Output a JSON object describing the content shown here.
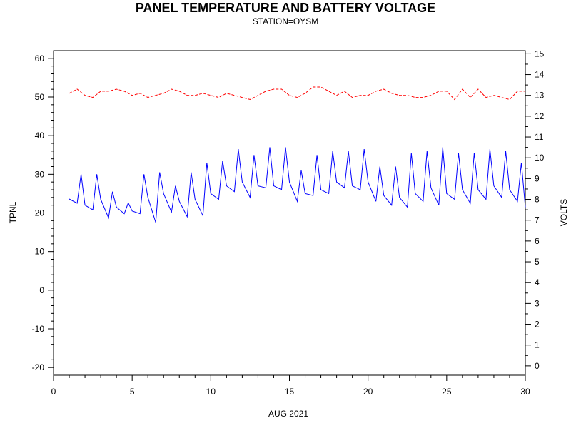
{
  "chart_data": {
    "type": "line",
    "title": "PANEL TEMPERATURE AND BATTERY VOLTAGE",
    "subtitle": "STATION=OYSM",
    "xlabel": "AUG 2021",
    "ylabel_left": "TPNL",
    "ylabel_right": "VOLTS",
    "xlim": [
      0,
      30
    ],
    "ylim_left": [
      -22,
      62
    ],
    "ylim_right": [
      -0.45,
      15.15
    ],
    "x_ticks": [
      0,
      5,
      10,
      15,
      20,
      25,
      30
    ],
    "y_ticks_left": [
      -20,
      -10,
      0,
      10,
      20,
      30,
      40,
      50,
      60
    ],
    "y_ticks_right": [
      0,
      1,
      2,
      3,
      4,
      5,
      6,
      7,
      8,
      9,
      10,
      11,
      12,
      13,
      14,
      15
    ],
    "grid": false,
    "colors": {
      "TPNL": "#0000ff",
      "VOLTS": "#ff0000",
      "axes": "#000000"
    },
    "series": [
      {
        "axis": "left",
        "style": "solid",
        "x": [
          1.0,
          1.5,
          1.75,
          2.0,
          2.5,
          2.75,
          3.0,
          3.5,
          3.75,
          4.0,
          4.5,
          4.75,
          5.0,
          5.5,
          5.75,
          6.0,
          6.5,
          6.75,
          7.0,
          7.5,
          7.75,
          8.0,
          8.5,
          8.75,
          9.0,
          9.5,
          9.75,
          10.0,
          10.5,
          10.75,
          11.0,
          11.5,
          11.75,
          12.0,
          12.5,
          12.75,
          13.0,
          13.5,
          13.75,
          14.0,
          14.5,
          14.75,
          15.0,
          15.5,
          15.75,
          16.0,
          16.5,
          16.75,
          17.0,
          17.5,
          17.75,
          18.0,
          18.5,
          18.75,
          19.0,
          19.5,
          19.75,
          20.0,
          20.5,
          20.75,
          21.0,
          21.5,
          21.75,
          22.0,
          22.5,
          22.75,
          23.0,
          23.5,
          23.75,
          24.0,
          24.5,
          24.75,
          25.0,
          25.5,
          25.75,
          26.0,
          26.5,
          26.75,
          27.0,
          27.5,
          27.75,
          28.0,
          28.5,
          28.75,
          29.0,
          29.5,
          29.75,
          30.0
        ],
        "values": [
          23.6,
          22.5,
          30.0,
          22.0,
          20.8,
          30.0,
          23.5,
          18.7,
          25.5,
          21.5,
          19.8,
          22.6,
          20.5,
          19.8,
          30.0,
          24.0,
          17.5,
          30.5,
          25.0,
          20.2,
          27.0,
          23.0,
          19.0,
          30.5,
          23.5,
          19.3,
          33.0,
          25.0,
          23.5,
          33.5,
          27.0,
          25.5,
          36.5,
          28.0,
          24.0,
          35.0,
          27.0,
          26.5,
          37.0,
          27.0,
          26.0,
          37.0,
          28.0,
          23.0,
          31.0,
          25.0,
          24.5,
          35.0,
          26.0,
          25.0,
          36.0,
          28.0,
          26.5,
          36.0,
          27.0,
          26.0,
          36.5,
          28.0,
          23.0,
          32.0,
          24.5,
          22.0,
          32.0,
          24.0,
          21.5,
          35.5,
          25.0,
          23.0,
          36.0,
          26.5,
          22.0,
          37.0,
          25.0,
          23.5,
          35.5,
          26.0,
          22.5,
          35.5,
          26.0,
          23.5,
          36.5,
          27.0,
          24.0,
          36.0,
          26.0,
          23.0,
          33.0,
          21.5
        ]
      },
      {
        "axis": "right",
        "style": "dashed",
        "x": [
          1.0,
          1.5,
          2.0,
          2.5,
          3.0,
          3.5,
          4.0,
          4.5,
          5.0,
          5.5,
          6.0,
          6.5,
          7.0,
          7.5,
          8.0,
          8.5,
          9.0,
          9.5,
          10.0,
          10.5,
          11.0,
          11.5,
          12.0,
          12.5,
          13.0,
          13.5,
          14.0,
          14.5,
          15.0,
          15.5,
          16.0,
          16.5,
          17.0,
          17.5,
          18.0,
          18.5,
          19.0,
          19.5,
          20.0,
          20.5,
          21.0,
          21.5,
          22.0,
          22.5,
          23.0,
          23.5,
          24.0,
          24.5,
          25.0,
          25.5,
          26.0,
          26.5,
          27.0,
          27.5,
          28.0,
          28.5,
          29.0,
          29.5,
          30.0
        ],
        "values": [
          13.1,
          13.3,
          13.0,
          12.9,
          13.2,
          13.2,
          13.3,
          13.2,
          13.0,
          13.1,
          12.9,
          13.0,
          13.1,
          13.3,
          13.2,
          13.0,
          13.0,
          13.1,
          13.0,
          12.9,
          13.1,
          13.0,
          12.9,
          12.8,
          13.0,
          13.2,
          13.3,
          13.3,
          13.0,
          12.9,
          13.1,
          13.4,
          13.4,
          13.2,
          13.0,
          13.2,
          12.9,
          13.0,
          13.0,
          13.2,
          13.3,
          13.1,
          13.0,
          13.0,
          12.9,
          12.9,
          13.0,
          13.2,
          13.2,
          12.8,
          13.3,
          12.9,
          13.3,
          12.9,
          13.0,
          12.9,
          12.8,
          13.2,
          13.2
        ]
      }
    ]
  }
}
